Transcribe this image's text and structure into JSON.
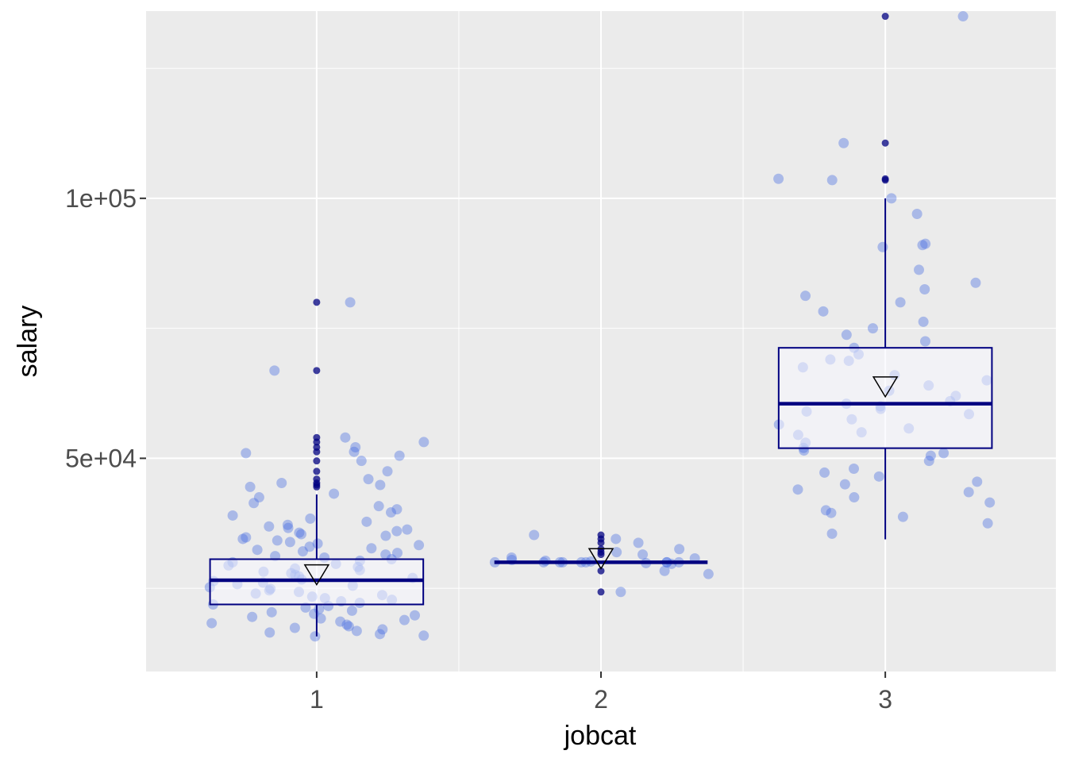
{
  "chart_data": {
    "type": "boxplot",
    "title": "",
    "xlabel": "jobcat",
    "ylabel": "salary",
    "categories": [
      "1",
      "2",
      "3"
    ],
    "x_range": [
      0.4,
      3.6
    ],
    "ylim": [
      9000,
      136000
    ],
    "y_ticks": [
      {
        "value": 50000,
        "label": "5e+04"
      },
      {
        "value": 100000,
        "label": "1e+05"
      }
    ],
    "y_minor_ticks": [
      25000,
      75000,
      125000
    ],
    "grid": true,
    "colors": {
      "panel": "#ebebeb",
      "grid": "#ffffff",
      "box_line": "#000080",
      "box_fill": "#f8f8ff",
      "jitter_point": "#4169e1",
      "outlier": "#000080"
    },
    "boxes": [
      {
        "category": "1",
        "q1": 21900,
        "median": 26550,
        "q3": 30600,
        "whisker_low": 15750,
        "whisker_high": 43050,
        "mean": 27840,
        "outliers": [
          80000,
          66875,
          54000,
          53125,
          52125,
          51250,
          49500,
          47500,
          46000,
          45250,
          44875,
          44500
        ]
      },
      {
        "category": "2",
        "q1": 30000,
        "median": 30000,
        "q3": 30000,
        "whisker_low": 30000,
        "whisker_high": 30000,
        "mean": 30939,
        "outliers": [
          35250,
          34500,
          33750,
          32550,
          31950,
          31500,
          28350,
          24300
        ]
      },
      {
        "category": "3",
        "q1": 51950,
        "median": 60500,
        "q3": 71250,
        "whisker_low": 34410,
        "whisker_high": 100000,
        "mean": 63978,
        "outliers": [
          135000,
          110625,
          103750,
          103500
        ]
      }
    ],
    "jitter_points": [
      {
        "category": "1",
        "y": [
          80000,
          66875,
          54000,
          53125,
          52125,
          51250,
          51000,
          50500,
          49500,
          47500,
          46000,
          45250,
          44875,
          44500,
          43200,
          42500,
          41400,
          40800,
          40200,
          39600,
          39000,
          38400,
          37800,
          37200,
          36900,
          36600,
          36300,
          36000,
          35700,
          35400,
          35100,
          34800,
          34500,
          34200,
          33900,
          33600,
          33300,
          33000,
          32700,
          32400,
          32100,
          31800,
          31500,
          31200,
          30900,
          30600,
          30300,
          30000,
          29700,
          29400,
          29100,
          28800,
          28500,
          28200,
          27900,
          27600,
          27300,
          27000,
          26700,
          26400,
          26100,
          25800,
          25500,
          25200,
          24900,
          24600,
          24300,
          24000,
          23700,
          23400,
          23100,
          22800,
          22500,
          22200,
          21900,
          21600,
          21300,
          21000,
          20700,
          20400,
          20100,
          19800,
          19500,
          19200,
          18900,
          18600,
          18300,
          18000,
          17700,
          17400,
          17100,
          16800,
          16500,
          16200,
          15900,
          15750
        ]
      },
      {
        "category": "2",
        "y": [
          35250,
          34500,
          33750,
          32550,
          31950,
          31500,
          30900,
          30750,
          30450,
          30300,
          30150,
          30000,
          30000,
          30000,
          30000,
          30000,
          30000,
          30000,
          30000,
          30000,
          29850,
          29700,
          28350,
          27750,
          24300
        ]
      },
      {
        "category": "3",
        "y": [
          135000,
          110625,
          103750,
          103500,
          100000,
          97000,
          91250,
          91000,
          90625,
          86250,
          83750,
          82500,
          81250,
          80000,
          78250,
          76250,
          75000,
          73750,
          72500,
          71250,
          70000,
          69000,
          68750,
          67500,
          66000,
          65000,
          64000,
          63000,
          62000,
          61000,
          60500,
          60000,
          59500,
          59000,
          58500,
          57500,
          56500,
          55750,
          55000,
          54500,
          53000,
          52000,
          51500,
          51000,
          50500,
          49500,
          48000,
          47250,
          46500,
          45500,
          45000,
          44000,
          43500,
          42500,
          41500,
          40000,
          39500,
          38750,
          37500,
          35500
        ]
      }
    ]
  }
}
